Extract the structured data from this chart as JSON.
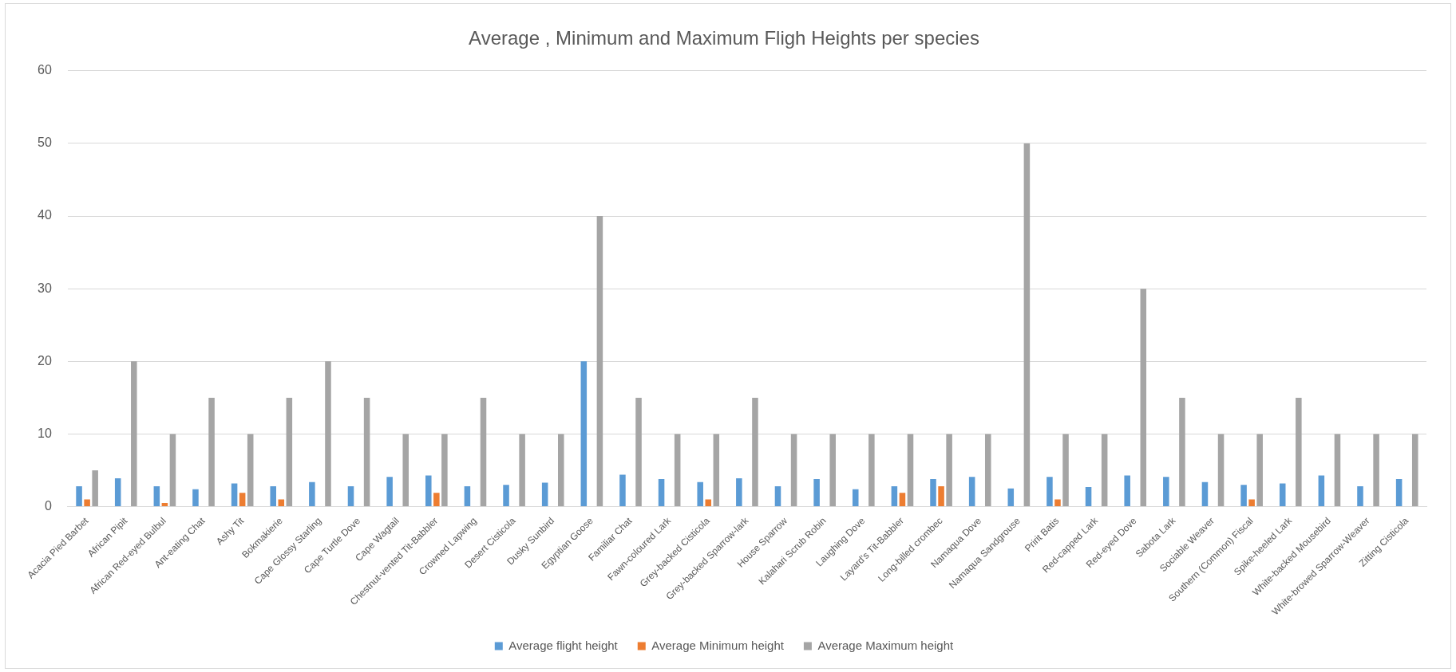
{
  "chart_data": {
    "type": "bar",
    "title": "Average , Minimum and Maximum Fligh Heights per species",
    "categories": [
      "Acacia Pied Barbet",
      "African Pipit",
      "African Red-eyed Bulbul",
      "Ant-eating Chat",
      "Ashy Tit",
      "Bokmakierie",
      "Cape Glossy Starling",
      "Cape Turtle Dove",
      "Cape Wagtail",
      "Chestnut-vented Tit-Babbler",
      "Crowned Lapwing",
      "Desert Cisticola",
      "Dusky Sunbird",
      "Egyptian Goose",
      "Familiar Chat",
      "Fawn-coloured Lark",
      "Grey-backed Cisticola",
      "Grey-backed Sparrow-lark",
      "House Sparrow",
      "Kalahari Scrub Robin",
      "Laughing Dove",
      "Layard's Tit-Babbler",
      "Long-billed crombec",
      "Namaqua Dove",
      "Namaqua Sandgrouse",
      "Pririt Batis",
      "Red-capped Lark",
      "Red-eyed Dove",
      "Sabota Lark",
      "Sociable Weaver",
      "Southern (Common) Fiscal",
      "Spike-heeled Lark",
      "White-backed Mousebird",
      "White-browed Sparrow-Weaver",
      "Zitting Cisticola"
    ],
    "series": [
      {
        "name": "Average flight height",
        "color": "#5b9bd5",
        "values": [
          2.8,
          3.9,
          2.8,
          2.4,
          3.2,
          2.8,
          3.4,
          2.8,
          4.1,
          4.3,
          2.8,
          3.0,
          3.3,
          20,
          4.4,
          3.8,
          3.4,
          3.9,
          2.8,
          3.8,
          2.4,
          2.8,
          3.8,
          4.1,
          2.5,
          4.1,
          2.7,
          4.3,
          4.1,
          3.4,
          3.0,
          3.2,
          4.3,
          2.8,
          3.8
        ]
      },
      {
        "name": "Average Minimum height",
        "color": "#ed7d31",
        "values": [
          1.0,
          null,
          0.5,
          null,
          1.9,
          1.0,
          null,
          null,
          null,
          1.9,
          null,
          null,
          null,
          null,
          null,
          null,
          1.0,
          null,
          null,
          null,
          null,
          1.9,
          2.8,
          null,
          null,
          1.0,
          null,
          null,
          null,
          null,
          1.0,
          null,
          null,
          null,
          null
        ]
      },
      {
        "name": "Average Maximum height",
        "color": "#a5a5a5",
        "values": [
          5,
          20,
          10,
          15,
          10,
          15,
          20,
          15,
          10,
          10,
          15,
          10,
          10,
          40,
          15,
          10,
          10,
          15,
          10,
          10,
          10,
          10,
          10,
          10,
          50,
          10,
          10,
          30,
          15,
          10,
          10,
          15,
          10,
          10,
          10
        ]
      }
    ],
    "ylim": [
      0,
      60
    ],
    "yticks": [
      0,
      10,
      20,
      30,
      40,
      50,
      60
    ],
    "grid": "y",
    "legend": "bottom"
  }
}
